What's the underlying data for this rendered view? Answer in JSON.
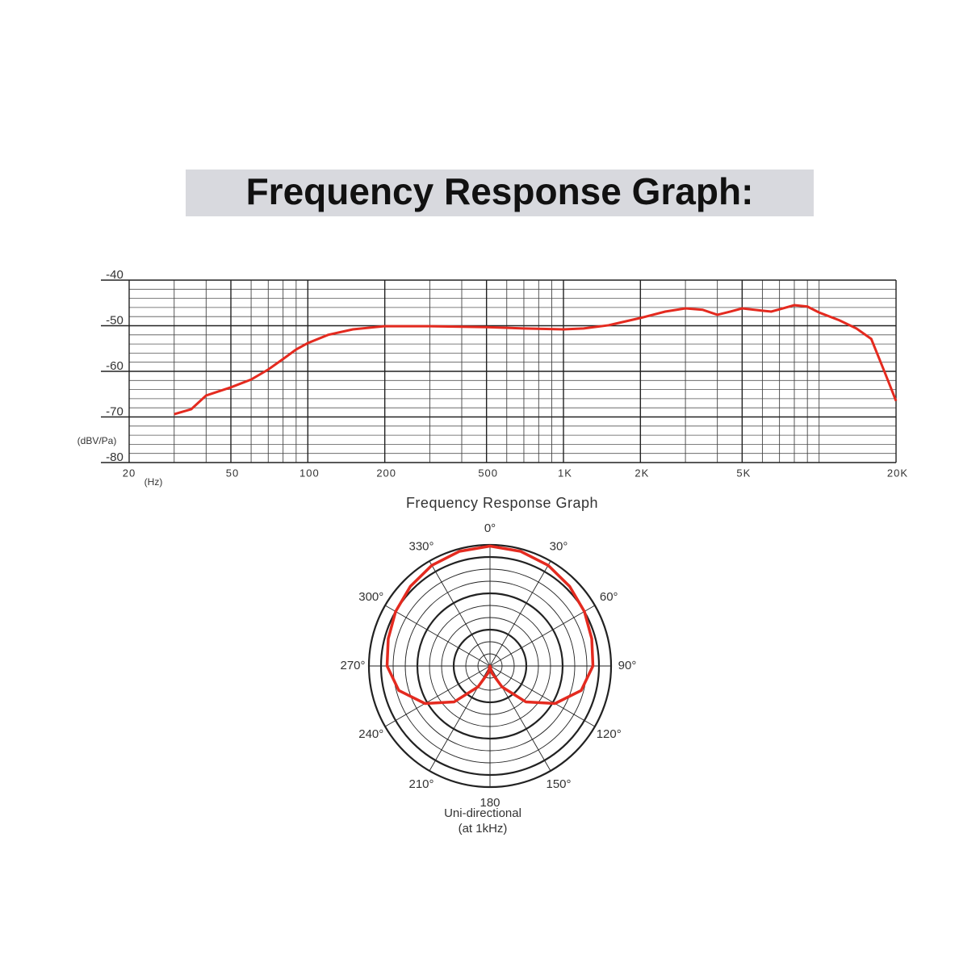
{
  "chart_data": [
    {
      "type": "line",
      "title": "Frequency Response Graph:",
      "caption": "Frequency Response Graph",
      "xlabel": "(Hz)",
      "ylabel": "(dBV/Pa)",
      "xscale": "log",
      "x": [
        30,
        35,
        40,
        50,
        60,
        70,
        80,
        90,
        100,
        120,
        150,
        200,
        300,
        500,
        700,
        1000,
        1200,
        1500,
        2000,
        2500,
        3000,
        3500,
        4000,
        4500,
        5000,
        6000,
        6500,
        7000,
        8000,
        9000,
        10000,
        12000,
        14000,
        16000,
        18000,
        20000
      ],
      "series": [
        {
          "color": "#e42a1f",
          "values": [
            -69.4,
            -68.3,
            -65.3,
            -63.5,
            -61.8,
            -59.6,
            -57.3,
            -55.2,
            -53.8,
            -52.0,
            -50.8,
            -50.1,
            -50.1,
            -50.3,
            -50.6,
            -50.8,
            -50.6,
            -49.9,
            -48.3,
            -46.9,
            -46.2,
            -46.5,
            -47.6,
            -46.9,
            -46.2,
            -46.7,
            -46.9,
            -46.4,
            -45.5,
            -45.8,
            -47.1,
            -48.8,
            -50.6,
            -52.9,
            -60.0,
            -66.5
          ]
        }
      ],
      "xlim": [
        20,
        20000
      ],
      "ylim": [
        -80,
        -40
      ],
      "xticks": [
        20,
        50,
        100,
        200,
        500,
        {
          "value": 1000,
          "label": "1K"
        },
        {
          "value": 2000,
          "label": "2K"
        },
        {
          "value": 5000,
          "label": "5K"
        },
        {
          "value": 20000,
          "label": "20K"
        }
      ],
      "yticks": [
        -80,
        -70,
        -60,
        -50,
        -40
      ],
      "xgrid": [
        30,
        40,
        60,
        70,
        80,
        90,
        300,
        400,
        600,
        700,
        800,
        900,
        3000,
        4000,
        6000,
        7000,
        8000,
        9000,
        10000
      ],
      "ygrid": [
        -78,
        -76,
        -74,
        -72,
        -68,
        -66,
        -64,
        -62,
        -58,
        -56,
        -54,
        -52,
        -48,
        -46,
        -44,
        -42
      ],
      "grid": true
    },
    {
      "type": "polar",
      "caption": [
        "Uni-directional",
        "(at 1kHz)"
      ],
      "theta": [
        0,
        15,
        30,
        45,
        60,
        75,
        90,
        105,
        120,
        135,
        150,
        165,
        180,
        195,
        210,
        225,
        240,
        255,
        270,
        285,
        300,
        315,
        330,
        345
      ],
      "r": [
        0.99,
        0.98,
        0.96,
        0.93,
        0.9,
        0.87,
        0.85,
        0.78,
        0.62,
        0.42,
        0.2,
        0.06,
        0.0,
        0.06,
        0.2,
        0.42,
        0.62,
        0.78,
        0.85,
        0.87,
        0.9,
        0.93,
        0.96,
        0.98
      ],
      "color": "#e42a1f",
      "rlim": [
        0,
        1
      ],
      "rticks": [
        0.1,
        0.2,
        0.3,
        0.4,
        0.5,
        0.6,
        0.7,
        0.8,
        0.9,
        1.0
      ],
      "thetaticks": [
        {
          "value": 0,
          "label": "0°"
        },
        {
          "value": 30,
          "label": "30°"
        },
        {
          "value": 60,
          "label": "60°"
        },
        {
          "value": 90,
          "label": "90°"
        },
        {
          "value": 120,
          "label": "120°"
        },
        {
          "value": 150,
          "label": "150°"
        },
        {
          "value": 180,
          "label": "180"
        },
        {
          "value": 210,
          "label": "210°"
        },
        {
          "value": 240,
          "label": "240°"
        },
        {
          "value": 270,
          "label": "270°"
        },
        {
          "value": 300,
          "label": "300°"
        },
        {
          "value": 330,
          "label": "330°"
        }
      ]
    }
  ]
}
